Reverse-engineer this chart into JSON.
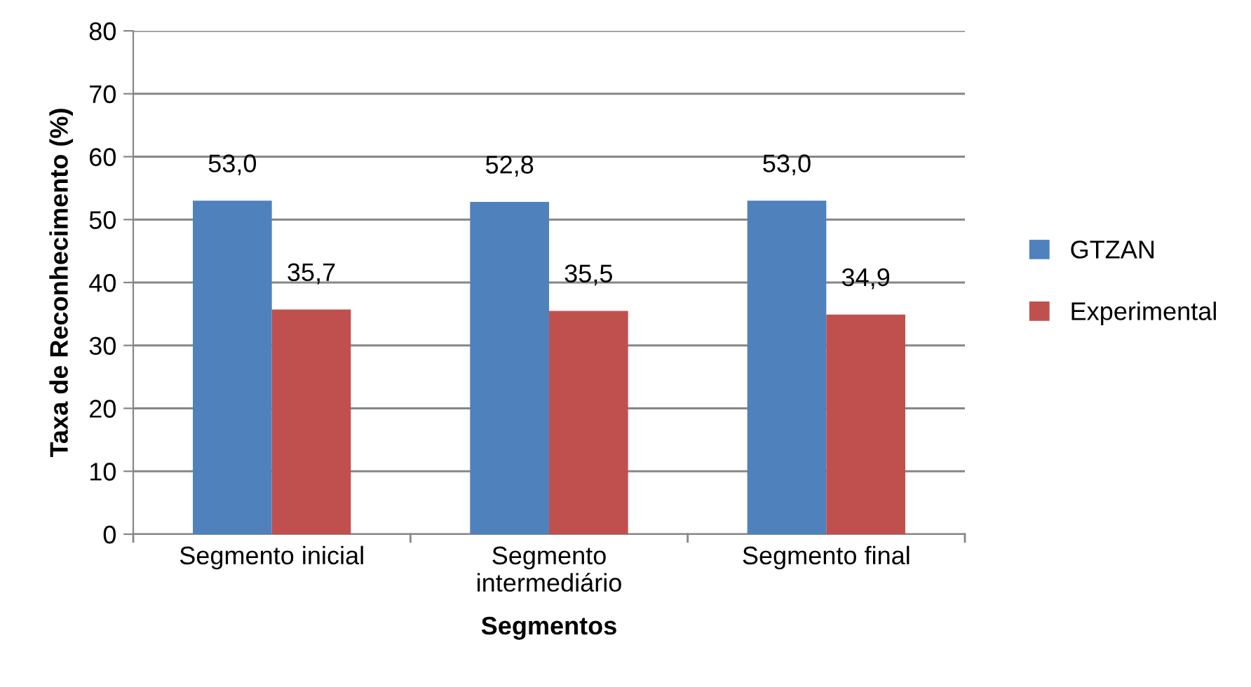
{
  "chart_data": {
    "type": "bar",
    "xlabel": "Segmentos",
    "ylabel": "Taxa de Reconhecimento (%)",
    "categories": [
      "Segmento inicial",
      "Segmento\nintermediário",
      "Segmento final"
    ],
    "series": [
      {
        "name": "GTZAN",
        "color": "#4f81bd",
        "values": [
          53.0,
          52.8,
          53.0
        ],
        "value_labels": [
          "53,0",
          "52,8",
          "53,0"
        ]
      },
      {
        "name": "Experimental",
        "color": "#c0504d",
        "values": [
          35.7,
          35.5,
          34.9
        ],
        "value_labels": [
          "35,7",
          "35,5",
          "34,9"
        ]
      }
    ],
    "ylim": [
      0,
      80
    ],
    "yticks": [
      0,
      10,
      20,
      30,
      40,
      50,
      60,
      70,
      80
    ],
    "grid": "y",
    "legend": "right"
  }
}
